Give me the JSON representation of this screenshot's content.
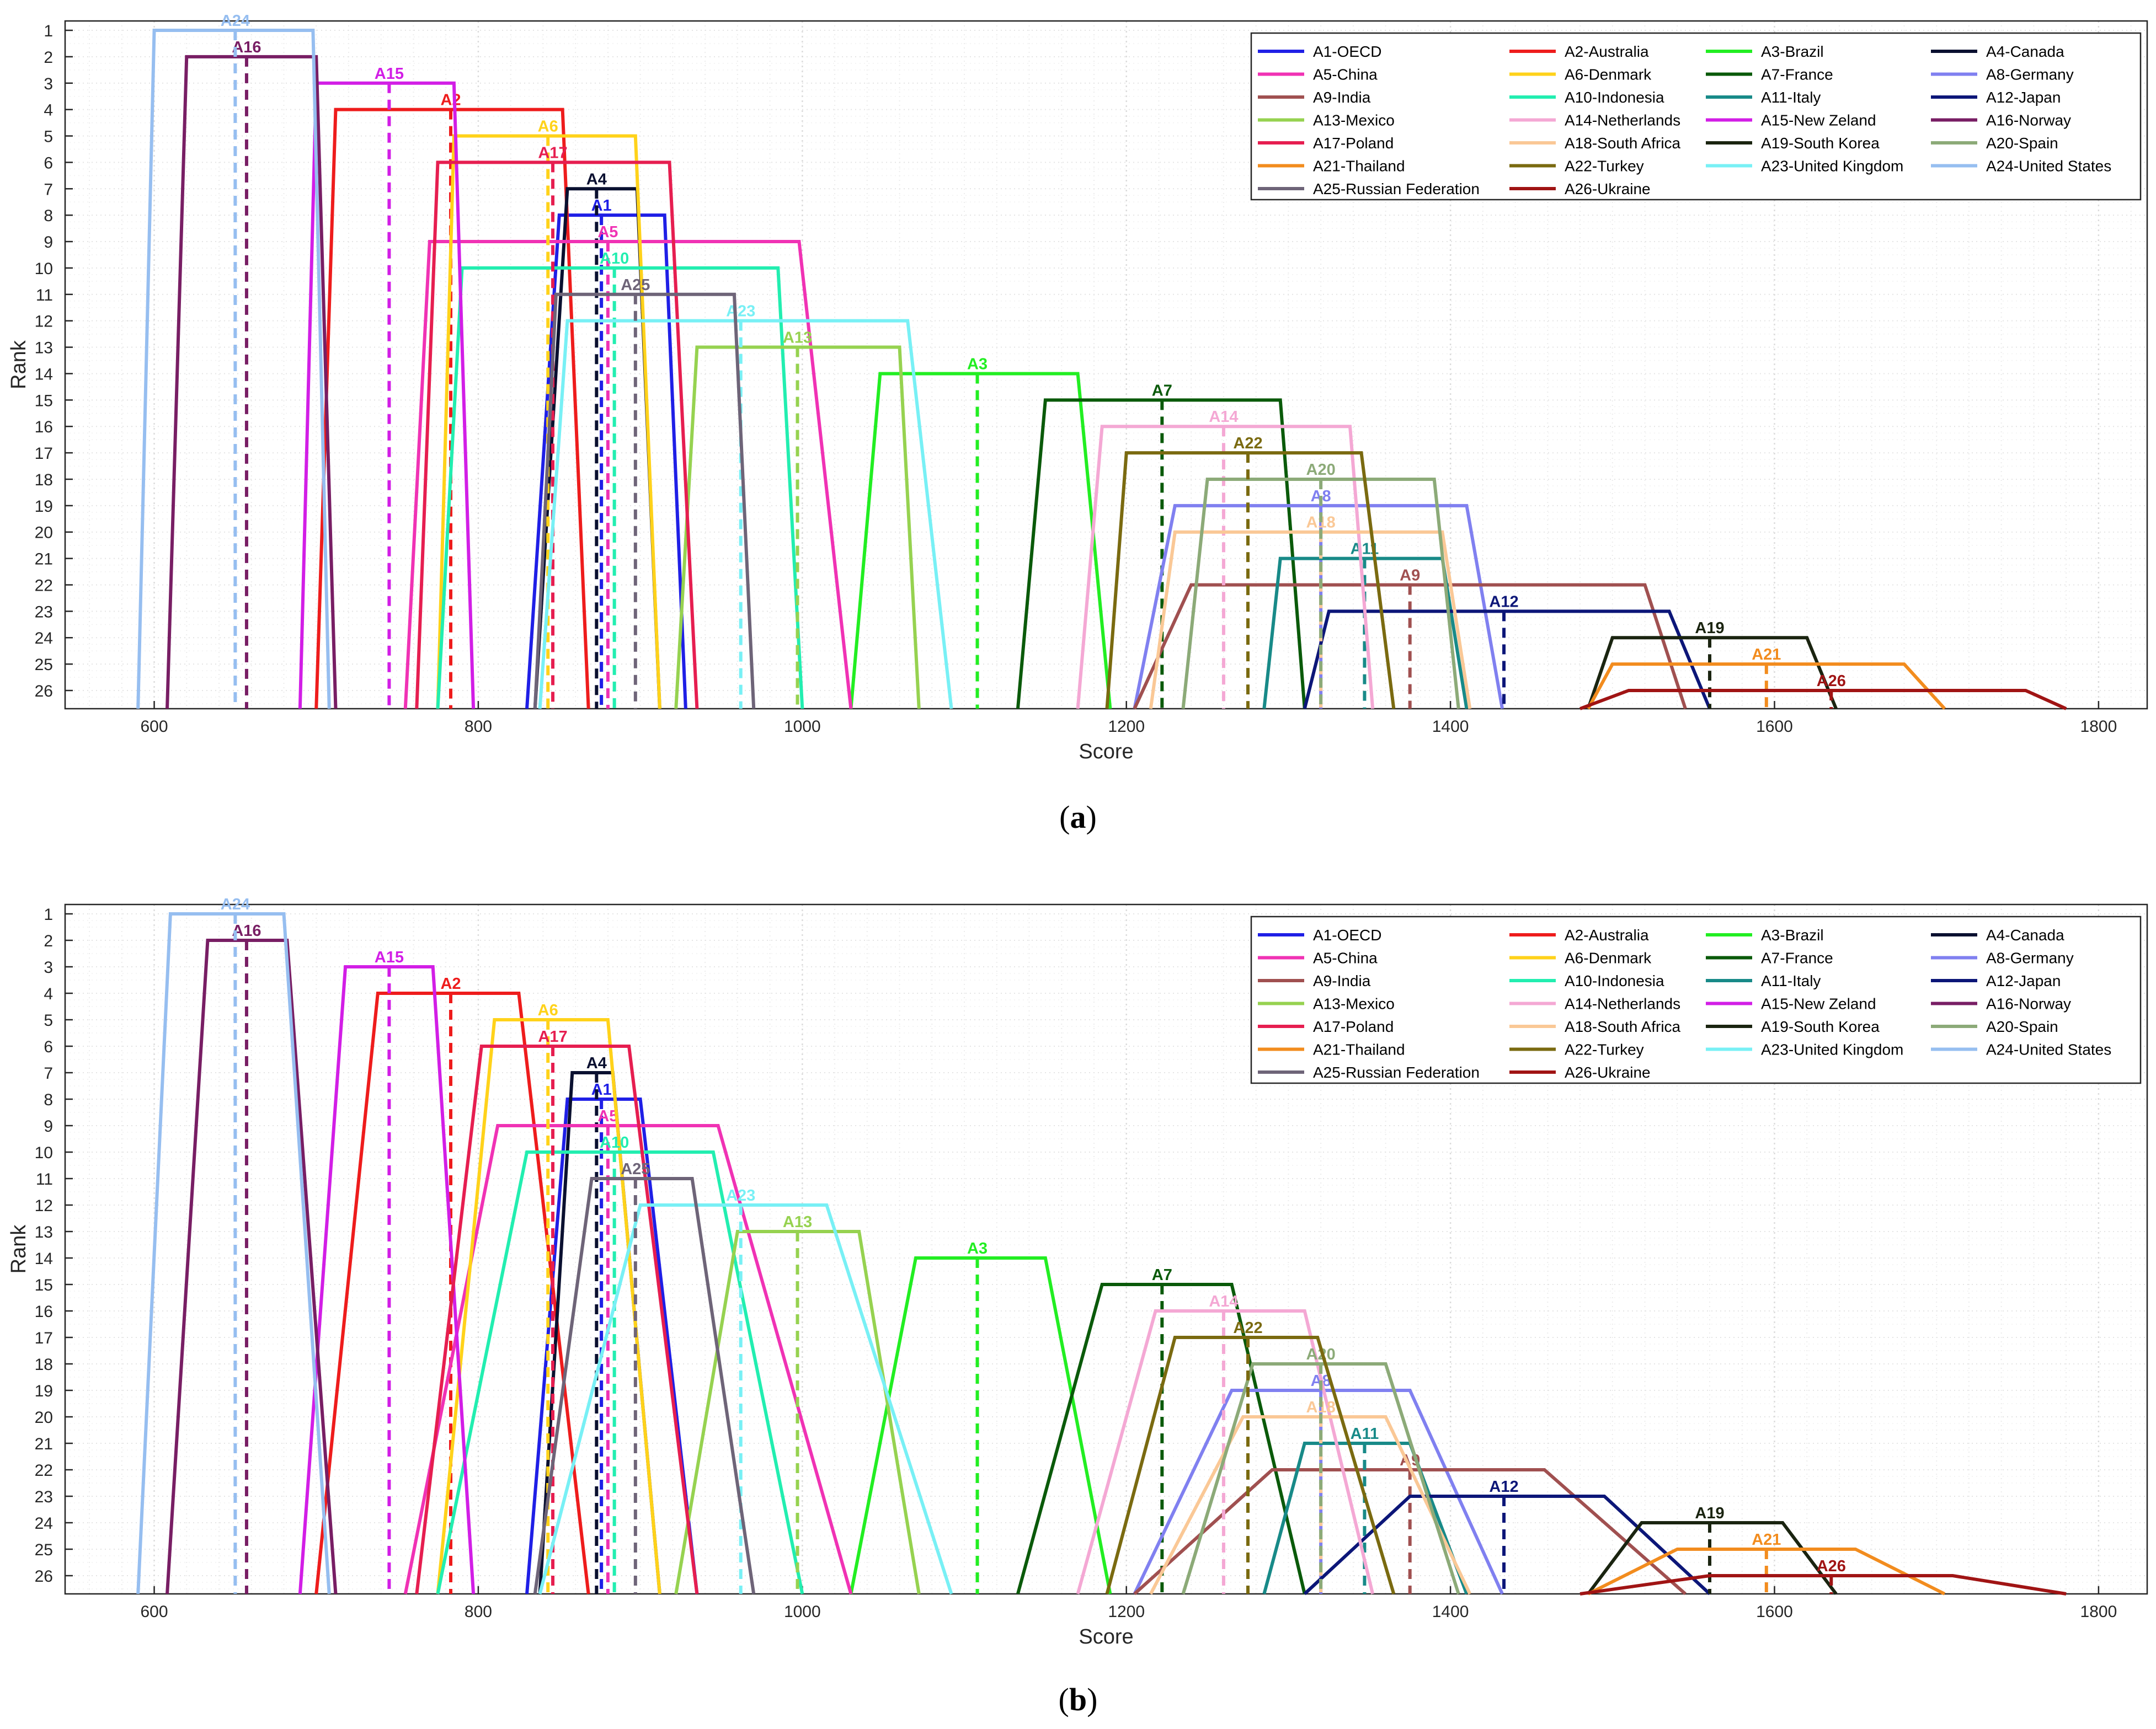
{
  "panels": [
    {
      "caption_letter": "a",
      "caption": "(a)"
    },
    {
      "caption_letter": "b",
      "caption": "(b)"
    }
  ],
  "chart_data": [
    {
      "type": "line",
      "panel": "a",
      "title": "",
      "xlabel": "Score",
      "ylabel": "Rank",
      "xlim": [
        545,
        1830
      ],
      "ylim": [
        1,
        26
      ],
      "xticks": [
        600,
        800,
        1000,
        1200,
        1400,
        1600,
        1800
      ],
      "yticks": [
        1,
        2,
        3,
        4,
        5,
        6,
        7,
        8,
        9,
        10,
        11,
        12,
        13,
        14,
        15,
        16,
        17,
        18,
        19,
        20,
        21,
        22,
        23,
        24,
        25,
        26
      ],
      "grid": true,
      "legend_location": "top-right",
      "series": [
        {
          "id": "A1",
          "name": "A1-OECD",
          "color": "#1f1fe6",
          "rank": 8,
          "trap": [
            830,
            850,
            915,
            928
          ],
          "mean": 876
        },
        {
          "id": "A2",
          "name": "A2-Australia",
          "color": "#ee1c1c",
          "rank": 4,
          "trap": [
            700,
            712,
            852,
            868
          ],
          "mean": 783
        },
        {
          "id": "A3",
          "name": "A3-Brazil",
          "color": "#22ee22",
          "rank": 14,
          "trap": [
            1030,
            1048,
            1170,
            1190
          ],
          "mean": 1108
        },
        {
          "id": "A4",
          "name": "A4-Canada",
          "color": "#0a1030",
          "rank": 7,
          "trap": [
            835,
            855,
            898,
            912
          ],
          "mean": 873
        },
        {
          "id": "A5",
          "name": "A5-China",
          "color": "#f032b4",
          "rank": 9,
          "trap": [
            755,
            770,
            998,
            1030
          ],
          "mean": 880
        },
        {
          "id": "A6",
          "name": "A6-Denmark",
          "color": "#ffd21a",
          "rank": 5,
          "trap": [
            775,
            785,
            897,
            912
          ],
          "mean": 843
        },
        {
          "id": "A7",
          "name": "A7-France",
          "color": "#0a5a0a",
          "rank": 15,
          "trap": [
            1133,
            1150,
            1295,
            1310
          ],
          "mean": 1222
        },
        {
          "id": "A8",
          "name": "A8-Germany",
          "color": "#8080f0",
          "rank": 19,
          "trap": [
            1205,
            1230,
            1410,
            1432
          ],
          "mean": 1320
        },
        {
          "id": "A9",
          "name": "A9-India",
          "color": "#a05050",
          "rank": 22,
          "trap": [
            1205,
            1240,
            1520,
            1545
          ],
          "mean": 1375
        },
        {
          "id": "A10",
          "name": "A10-Indonesia",
          "color": "#22eeb0",
          "rank": 10,
          "trap": [
            775,
            790,
            985,
            1000
          ],
          "mean": 884
        },
        {
          "id": "A11",
          "name": "A11-Italy",
          "color": "#188a88",
          "rank": 21,
          "trap": [
            1285,
            1295,
            1395,
            1410
          ],
          "mean": 1347
        },
        {
          "id": "A12",
          "name": "A12-Japan",
          "color": "#0c1678",
          "rank": 23,
          "trap": [
            1310,
            1325,
            1535,
            1560
          ],
          "mean": 1433
        },
        {
          "id": "A13",
          "name": "A13-Mexico",
          "color": "#96d250",
          "rank": 13,
          "trap": [
            922,
            935,
            1060,
            1072
          ],
          "mean": 997
        },
        {
          "id": "A14",
          "name": "A14-Netherlands",
          "color": "#f4a8d4",
          "rank": 16,
          "trap": [
            1170,
            1185,
            1338,
            1352
          ],
          "mean": 1260
        },
        {
          "id": "A15",
          "name": "A15-New Zeland",
          "color": "#d21ee6",
          "rank": 3,
          "trap": [
            690,
            700,
            785,
            797
          ],
          "mean": 745
        },
        {
          "id": "A16",
          "name": "A16-Norway",
          "color": "#781e64",
          "rank": 2,
          "trap": [
            608,
            620,
            700,
            712
          ],
          "mean": 657
        },
        {
          "id": "A17",
          "name": "A17-Poland",
          "color": "#e61e50",
          "rank": 6,
          "trap": [
            762,
            775,
            918,
            935
          ],
          "mean": 846
        },
        {
          "id": "A18",
          "name": "A18-South Africa",
          "color": "#fac896",
          "rank": 20,
          "trap": [
            1215,
            1230,
            1395,
            1412
          ],
          "mean": 1320
        },
        {
          "id": "A19",
          "name": "A19-South Korea",
          "color": "#1a2410",
          "rank": 24,
          "trap": [
            1485,
            1500,
            1620,
            1638
          ],
          "mean": 1560
        },
        {
          "id": "A20",
          "name": "A20-Spain",
          "color": "#8caa78",
          "rank": 18,
          "trap": [
            1235,
            1250,
            1390,
            1405
          ],
          "mean": 1320
        },
        {
          "id": "A21",
          "name": "A21-Thailand",
          "color": "#f28c1e",
          "rank": 25,
          "trap": [
            1485,
            1500,
            1680,
            1705
          ],
          "mean": 1595
        },
        {
          "id": "A22",
          "name": "A22-Turkey",
          "color": "#7a6a10",
          "rank": 17,
          "trap": [
            1188,
            1200,
            1345,
            1365
          ],
          "mean": 1275
        },
        {
          "id": "A23",
          "name": "A23-United Kingdom",
          "color": "#78f0f5",
          "rank": 12,
          "trap": [
            838,
            855,
            1065,
            1092
          ],
          "mean": 962
        },
        {
          "id": "A24",
          "name": "A24-United States",
          "color": "#96bef0",
          "rank": 1,
          "trap": [
            590,
            600,
            698,
            708
          ],
          "mean": 650
        },
        {
          "id": "A25",
          "name": "A25-Russian Federation",
          "color": "#6e6478",
          "rank": 11,
          "trap": [
            835,
            848,
            958,
            970
          ],
          "mean": 897
        },
        {
          "id": "A26",
          "name": "A26-Ukraine",
          "color": "#a01414",
          "rank": 26,
          "trap": [
            1480,
            1510,
            1755,
            1780
          ],
          "mean": 1635
        }
      ]
    },
    {
      "type": "line",
      "panel": "b",
      "title": "",
      "xlabel": "Score",
      "ylabel": "Rank",
      "xlim": [
        545,
        1830
      ],
      "ylim": [
        1,
        26
      ],
      "xticks": [
        600,
        800,
        1000,
        1200,
        1400,
        1600,
        1800
      ],
      "yticks": [
        1,
        2,
        3,
        4,
        5,
        6,
        7,
        8,
        9,
        10,
        11,
        12,
        13,
        14,
        15,
        16,
        17,
        18,
        19,
        20,
        21,
        22,
        23,
        24,
        25,
        26
      ],
      "grid": true,
      "legend_location": "top-right",
      "series": [
        {
          "id": "A1",
          "name": "A1-OECD",
          "color": "#1f1fe6",
          "rank": 8,
          "trap": [
            830,
            855,
            900,
            935
          ],
          "mean": 876
        },
        {
          "id": "A2",
          "name": "A2-Australia",
          "color": "#ee1c1c",
          "rank": 4,
          "trap": [
            700,
            738,
            825,
            868
          ],
          "mean": 783
        },
        {
          "id": "A3",
          "name": "A3-Brazil",
          "color": "#22ee22",
          "rank": 14,
          "trap": [
            1030,
            1070,
            1150,
            1190
          ],
          "mean": 1108
        },
        {
          "id": "A4",
          "name": "A4-Canada",
          "color": "#0a1030",
          "rank": 7,
          "trap": [
            838,
            858,
            883,
            912
          ],
          "mean": 873
        },
        {
          "id": "A5",
          "name": "A5-China",
          "color": "#f032b4",
          "rank": 9,
          "trap": [
            755,
            812,
            948,
            1030
          ],
          "mean": 880
        },
        {
          "id": "A6",
          "name": "A6-Denmark",
          "color": "#ffd21a",
          "rank": 5,
          "trap": [
            775,
            810,
            880,
            912
          ],
          "mean": 843
        },
        {
          "id": "A7",
          "name": "A7-France",
          "color": "#0a5a0a",
          "rank": 15,
          "trap": [
            1133,
            1185,
            1265,
            1310
          ],
          "mean": 1222
        },
        {
          "id": "A8",
          "name": "A8-Germany",
          "color": "#8080f0",
          "rank": 19,
          "trap": [
            1205,
            1265,
            1375,
            1432
          ],
          "mean": 1320
        },
        {
          "id": "A9",
          "name": "A9-India",
          "color": "#a05050",
          "rank": 22,
          "trap": [
            1205,
            1290,
            1458,
            1545
          ],
          "mean": 1375
        },
        {
          "id": "A10",
          "name": "A10-Indonesia",
          "color": "#22eeb0",
          "rank": 10,
          "trap": [
            775,
            830,
            945,
            1000
          ],
          "mean": 884
        },
        {
          "id": "A11",
          "name": "A11-Italy",
          "color": "#188a88",
          "rank": 21,
          "trap": [
            1285,
            1310,
            1375,
            1410
          ],
          "mean": 1347
        },
        {
          "id": "A12",
          "name": "A12-Japan",
          "color": "#0c1678",
          "rank": 23,
          "trap": [
            1310,
            1375,
            1495,
            1560
          ],
          "mean": 1433
        },
        {
          "id": "A13",
          "name": "A13-Mexico",
          "color": "#96d250",
          "rank": 13,
          "trap": [
            922,
            960,
            1035,
            1072
          ],
          "mean": 997
        },
        {
          "id": "A14",
          "name": "A14-Netherlands",
          "color": "#f4a8d4",
          "rank": 16,
          "trap": [
            1170,
            1218,
            1310,
            1352
          ],
          "mean": 1260
        },
        {
          "id": "A15",
          "name": "A15-New Zeland",
          "color": "#d21ee6",
          "rank": 3,
          "trap": [
            690,
            718,
            772,
            797
          ],
          "mean": 745
        },
        {
          "id": "A16",
          "name": "A16-Norway",
          "color": "#781e64",
          "rank": 2,
          "trap": [
            608,
            633,
            682,
            712
          ],
          "mean": 657
        },
        {
          "id": "A17",
          "name": "A17-Poland",
          "color": "#e61e50",
          "rank": 6,
          "trap": [
            762,
            802,
            893,
            935
          ],
          "mean": 846
        },
        {
          "id": "A18",
          "name": "A18-South Africa",
          "color": "#fac896",
          "rank": 20,
          "trap": [
            1215,
            1272,
            1360,
            1412
          ],
          "mean": 1320
        },
        {
          "id": "A19",
          "name": "A19-South Korea",
          "color": "#1a2410",
          "rank": 24,
          "trap": [
            1485,
            1518,
            1605,
            1638
          ],
          "mean": 1560
        },
        {
          "id": "A20",
          "name": "A20-Spain",
          "color": "#8caa78",
          "rank": 18,
          "trap": [
            1235,
            1278,
            1360,
            1405
          ],
          "mean": 1320
        },
        {
          "id": "A21",
          "name": "A21-Thailand",
          "color": "#f28c1e",
          "rank": 25,
          "trap": [
            1485,
            1540,
            1650,
            1705
          ],
          "mean": 1595
        },
        {
          "id": "A22",
          "name": "A22-Turkey",
          "color": "#7a6a10",
          "rank": 17,
          "trap": [
            1188,
            1230,
            1318,
            1365
          ],
          "mean": 1275
        },
        {
          "id": "A23",
          "name": "A23-United Kingdom",
          "color": "#78f0f5",
          "rank": 12,
          "trap": [
            838,
            900,
            1015,
            1092
          ],
          "mean": 962
        },
        {
          "id": "A24",
          "name": "A24-United States",
          "color": "#96bef0",
          "rank": 1,
          "trap": [
            590,
            610,
            680,
            708
          ],
          "mean": 650
        },
        {
          "id": "A25",
          "name": "A25-Russian Federation",
          "color": "#6e6478",
          "rank": 11,
          "trap": [
            835,
            870,
            932,
            970
          ],
          "mean": 897
        },
        {
          "id": "A26",
          "name": "A26-Ukraine",
          "color": "#a01414",
          "rank": 26,
          "trap": [
            1480,
            1560,
            1710,
            1780
          ],
          "mean": 1635
        }
      ]
    }
  ]
}
